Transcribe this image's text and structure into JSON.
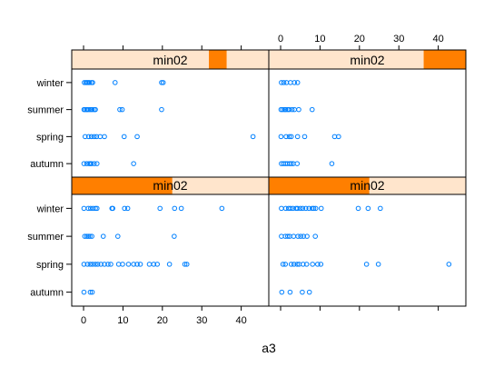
{
  "chart_data": {
    "type": "scatter",
    "xlabel": "a3",
    "ylabel": "",
    "xlim": [
      -3,
      47
    ],
    "x_ticks": [
      0,
      10,
      20,
      30,
      40
    ],
    "categories": [
      "autumn",
      "spring",
      "summer",
      "winter"
    ],
    "colors": {
      "point": "#0080ff",
      "strip_bg": "#ffe5cc",
      "strip_level": "#ff7f00",
      "frame": "#000000"
    },
    "panels": [
      {
        "strip_label": "min02",
        "strip_level": [
          0.696,
          0.786
        ],
        "points": {
          "winter": [
            0.2,
            0.6,
            0.9,
            1.2,
            1.5,
            2.0,
            2.3,
            8.0,
            19.8,
            20.2
          ],
          "summer": [
            0.1,
            0.4,
            0.8,
            1.0,
            1.4,
            1.8,
            2.2,
            2.7,
            3.0,
            9.2,
            9.8,
            19.8
          ],
          "spring": [
            0.4,
            1.3,
            2.0,
            2.7,
            3.3,
            4.2,
            5.3,
            10.3,
            13.6,
            43.0
          ],
          "autumn": [
            0.1,
            0.8,
            1.4,
            1.7,
            2.0,
            2.7,
            3.4,
            12.7
          ]
        }
      },
      {
        "strip_label": "min02",
        "strip_level": [
          0.786,
          1.0
        ],
        "points": {
          "winter": [
            0.2,
            0.8,
            1.5,
            2.5,
            3.5,
            4.3
          ],
          "summer": [
            0.1,
            0.5,
            1.0,
            1.3,
            1.8,
            2.2,
            2.9,
            3.5,
            4.6,
            8.0
          ],
          "spring": [
            0.1,
            1.4,
            2.2,
            2.7,
            4.3,
            6.1,
            13.7,
            14.7
          ],
          "autumn": [
            0.2,
            0.7,
            1.2,
            1.7,
            2.3,
            2.7,
            3.2,
            4.2,
            13.0
          ]
        }
      },
      {
        "strip_label": "min02",
        "strip_level": [
          0.0,
          0.51
        ],
        "points": {
          "winter": [
            0.1,
            1.2,
            1.8,
            2.4,
            3.0,
            3.4,
            7.2,
            7.4,
            10.4,
            11.2,
            19.4,
            23.1,
            24.8,
            35.1
          ],
          "summer": [
            0.3,
            0.8,
            1.2,
            1.6,
            2.1,
            5.0,
            8.7,
            23.0
          ],
          "spring": [
            0.1,
            1.0,
            1.7,
            2.3,
            3.0,
            3.6,
            4.4,
            5.3,
            6.2,
            6.9,
            8.9,
            9.9,
            11.4,
            12.7,
            13.6,
            14.4,
            16.7,
            17.8,
            18.7,
            21.8,
            25.7,
            26.2
          ],
          "autumn": [
            0.1,
            1.7,
            2.2
          ]
        }
      },
      {
        "strip_label": "min02",
        "strip_level": [
          0.0,
          0.51
        ],
        "points": {
          "winter": [
            0.2,
            1.3,
            2.0,
            2.5,
            3.1,
            3.9,
            4.3,
            5.0,
            5.6,
            6.4,
            7.2,
            8.0,
            8.4,
            8.9,
            10.3,
            19.7,
            22.2,
            25.3
          ],
          "summer": [
            0.2,
            1.2,
            1.8,
            2.3,
            3.3,
            4.4,
            5.1,
            5.8,
            6.7,
            8.8
          ],
          "spring": [
            0.6,
            1.2,
            2.7,
            3.4,
            4.2,
            4.7,
            5.7,
            6.6,
            8.1,
            9.4,
            10.2,
            21.8,
            24.8,
            42.7
          ],
          "autumn": [
            0.3,
            2.4,
            5.5,
            7.3
          ]
        }
      }
    ]
  }
}
